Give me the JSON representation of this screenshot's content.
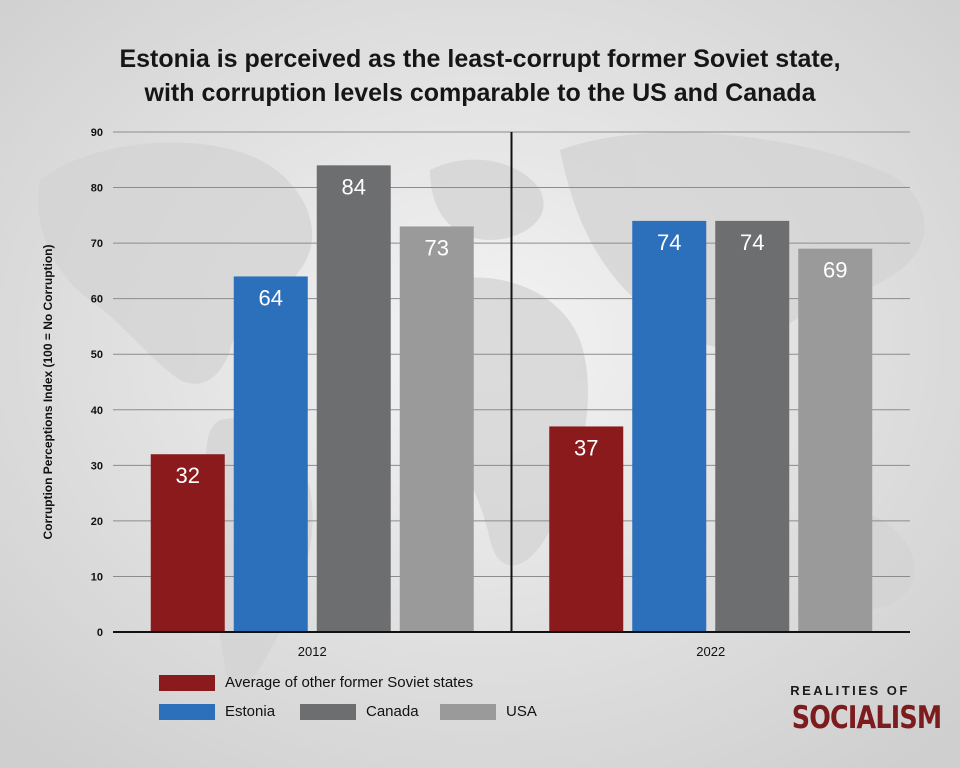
{
  "title": {
    "line1": "Estonia is perceived as the least-corrupt former Soviet state,",
    "line2": "with corruption levels comparable to the US and Canada"
  },
  "chart_data": {
    "type": "bar",
    "title": "Estonia is perceived as the least-corrupt former Soviet state, with corruption levels comparable to the US and Canada",
    "xlabel": "",
    "ylabel": "Corruption Perceptions Index (100 = No Corruption)",
    "ylim": [
      0,
      90
    ],
    "yticks": [
      0,
      10,
      20,
      30,
      40,
      50,
      60,
      70,
      80,
      90
    ],
    "grid": true,
    "legend_placement": "bottom-left",
    "categories": [
      "2012",
      "2022"
    ],
    "series": [
      {
        "name": "Average of other former Soviet states",
        "color": "#8b1a1c",
        "values": [
          32,
          37
        ]
      },
      {
        "name": "Estonia",
        "color": "#2c6fba",
        "values": [
          64,
          74
        ]
      },
      {
        "name": "Canada",
        "color": "#6d6e70",
        "values": [
          84,
          74
        ]
      },
      {
        "name": "USA",
        "color": "#9a9a9a",
        "values": [
          73,
          69
        ]
      }
    ]
  },
  "legend": [
    {
      "label": "Average of other former Soviet states",
      "color": "#8b1a1c"
    },
    {
      "label": "Estonia",
      "color": "#2c6fba"
    },
    {
      "label": "Canada",
      "color": "#6d6e70"
    },
    {
      "label": "USA",
      "color": "#9a9a9a"
    }
  ],
  "brand": {
    "top": "REALITIES OF",
    "main": "SOCIALISM",
    "color": "#7d1c1f"
  }
}
